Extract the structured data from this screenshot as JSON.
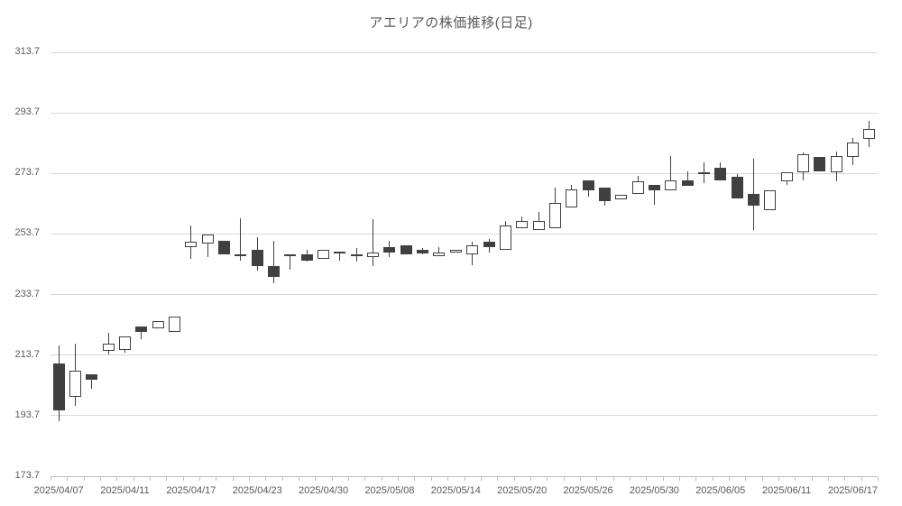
{
  "page": {
    "title": "アエリアの株価推移(日足)"
  },
  "chart_data": {
    "type": "candlestick",
    "title": "アエリアの株価推移(日足)",
    "grid": "horizontal",
    "legend": "none",
    "colors": {
      "up_fill": "#ffffff",
      "down_fill": "#404040",
      "outline": "#404040",
      "gridline": "#d9d9d9",
      "axis": "#bfbfbf",
      "text": "#595959",
      "background": "#ffffff"
    },
    "y_axis": {
      "min": 173.7,
      "max": 313.7,
      "step": 20,
      "tick_labels": [
        "173.7",
        "193.7",
        "213.7",
        "233.7",
        "253.7",
        "273.7",
        "293.7",
        "313.7"
      ]
    },
    "x_axis": {
      "label_every": 4,
      "tick_labels": [
        "2025/04/07",
        "2025/04/11",
        "2025/04/17",
        "2025/04/23",
        "2025/04/30",
        "2025/05/08",
        "2025/05/14",
        "2025/05/20",
        "2025/05/26",
        "2025/05/30",
        "2025/06/05",
        "2025/06/11",
        "2025/06/17"
      ]
    },
    "candles": [
      {
        "date": "2025/04/07",
        "o": 211.0,
        "h": 217.0,
        "l": 192.0,
        "c": 195.5
      },
      {
        "date": "2025/04/08",
        "o": 200.0,
        "h": 217.5,
        "l": 197.0,
        "c": 208.5
      },
      {
        "date": "2025/04/09",
        "o": 207.5,
        "h": 207.5,
        "l": 202.5,
        "c": 205.5
      },
      {
        "date": "2025/04/10",
        "o": 215.0,
        "h": 221.0,
        "l": 214.0,
        "c": 217.5
      },
      {
        "date": "2025/04/11",
        "o": 215.5,
        "h": 220.0,
        "l": 214.5,
        "c": 220.0
      },
      {
        "date": "2025/04/14",
        "o": 223.0,
        "h": 223.0,
        "l": 219.0,
        "c": 221.5
      },
      {
        "date": "2025/04/15",
        "o": 222.5,
        "h": 225.0,
        "l": 222.5,
        "c": 225.0
      },
      {
        "date": "2025/04/16",
        "o": 221.5,
        "h": 226.5,
        "l": 221.5,
        "c": 226.5
      },
      {
        "date": "2025/04/17",
        "o": 249.5,
        "h": 256.5,
        "l": 245.5,
        "c": 251.0
      },
      {
        "date": "2025/04/18",
        "o": 250.5,
        "h": 253.5,
        "l": 246.0,
        "c": 253.5
      },
      {
        "date": "2025/04/21",
        "o": 251.5,
        "h": 251.5,
        "l": 247.0,
        "c": 247.0
      },
      {
        "date": "2025/04/22",
        "o": 247.0,
        "h": 259.0,
        "l": 245.0,
        "c": 246.3
      },
      {
        "date": "2025/04/23",
        "o": 248.5,
        "h": 252.5,
        "l": 241.5,
        "c": 243.0
      },
      {
        "date": "2025/04/24",
        "o": 243.0,
        "h": 251.5,
        "l": 237.5,
        "c": 239.5
      },
      {
        "date": "2025/04/25",
        "o": 247.0,
        "h": 247.0,
        "l": 242.0,
        "c": 246.5
      },
      {
        "date": "2025/04/28",
        "o": 247.0,
        "h": 248.5,
        "l": 244.5,
        "c": 245.0
      },
      {
        "date": "2025/04/30",
        "o": 245.5,
        "h": 248.5,
        "l": 245.5,
        "c": 248.5
      },
      {
        "date": "2025/05/01",
        "o": 248.0,
        "h": 248.0,
        "l": 245.0,
        "c": 247.5
      },
      {
        "date": "2025/05/02",
        "o": 247.0,
        "h": 249.0,
        "l": 244.5,
        "c": 246.5
      },
      {
        "date": "2025/05/07",
        "o": 246.0,
        "h": 258.5,
        "l": 243.0,
        "c": 247.5
      },
      {
        "date": "2025/05/08",
        "o": 249.5,
        "h": 251.5,
        "l": 246.0,
        "c": 247.5
      },
      {
        "date": "2025/05/09",
        "o": 250.0,
        "h": 250.0,
        "l": 247.0,
        "c": 247.0
      },
      {
        "date": "2025/05/12",
        "o": 248.5,
        "h": 249.0,
        "l": 247.0,
        "c": 247.3
      },
      {
        "date": "2025/05/13",
        "o": 246.5,
        "h": 249.5,
        "l": 246.5,
        "c": 247.5
      },
      {
        "date": "2025/05/14",
        "o": 247.5,
        "h": 248.5,
        "l": 247.5,
        "c": 248.5
      },
      {
        "date": "2025/05/15",
        "o": 247.0,
        "h": 251.0,
        "l": 243.5,
        "c": 250.0
      },
      {
        "date": "2025/05/16",
        "o": 251.0,
        "h": 252.0,
        "l": 247.5,
        "c": 249.5
      },
      {
        "date": "2025/05/19",
        "o": 248.5,
        "h": 258.0,
        "l": 248.5,
        "c": 256.5
      },
      {
        "date": "2025/05/20",
        "o": 255.5,
        "h": 259.5,
        "l": 255.5,
        "c": 258.0
      },
      {
        "date": "2025/05/21",
        "o": 255.0,
        "h": 261.0,
        "l": 255.0,
        "c": 258.0
      },
      {
        "date": "2025/05/22",
        "o": 255.5,
        "h": 269.0,
        "l": 255.5,
        "c": 264.0
      },
      {
        "date": "2025/05/23",
        "o": 262.5,
        "h": 270.0,
        "l": 262.5,
        "c": 268.5
      },
      {
        "date": "2025/05/26",
        "o": 271.5,
        "h": 271.5,
        "l": 266.0,
        "c": 268.0
      },
      {
        "date": "2025/05/27",
        "o": 269.0,
        "h": 269.0,
        "l": 263.0,
        "c": 264.5
      },
      {
        "date": "2025/05/28",
        "o": 265.0,
        "h": 266.5,
        "l": 265.0,
        "c": 266.5
      },
      {
        "date": "2025/05/29",
        "o": 267.0,
        "h": 273.0,
        "l": 267.0,
        "c": 271.0
      },
      {
        "date": "2025/05/30",
        "o": 270.0,
        "h": 270.0,
        "l": 263.5,
        "c": 268.0
      },
      {
        "date": "2025/06/02",
        "o": 268.0,
        "h": 279.5,
        "l": 268.0,
        "c": 271.5
      },
      {
        "date": "2025/06/03",
        "o": 271.5,
        "h": 274.5,
        "l": 269.5,
        "c": 269.5
      },
      {
        "date": "2025/06/04",
        "o": 273.5,
        "h": 277.5,
        "l": 270.5,
        "c": 274.0
      },
      {
        "date": "2025/06/05",
        "o": 275.5,
        "h": 277.5,
        "l": 271.5,
        "c": 271.5
      },
      {
        "date": "2025/06/06",
        "o": 272.5,
        "h": 273.5,
        "l": 265.5,
        "c": 265.5
      },
      {
        "date": "2025/06/09",
        "o": 267.0,
        "h": 278.5,
        "l": 255.0,
        "c": 263.0
      },
      {
        "date": "2025/06/10",
        "o": 261.5,
        "h": 268.0,
        "l": 261.5,
        "c": 268.0
      },
      {
        "date": "2025/06/11",
        "o": 271.0,
        "h": 274.0,
        "l": 270.0,
        "c": 274.0
      },
      {
        "date": "2025/06/12",
        "o": 274.0,
        "h": 280.5,
        "l": 271.5,
        "c": 280.0
      },
      {
        "date": "2025/06/13",
        "o": 279.0,
        "h": 279.0,
        "l": 274.5,
        "c": 274.5
      },
      {
        "date": "2025/06/16",
        "o": 274.0,
        "h": 281.0,
        "l": 271.0,
        "c": 279.5
      },
      {
        "date": "2025/06/17",
        "o": 279.0,
        "h": 285.5,
        "l": 276.5,
        "c": 284.0
      },
      {
        "date": "2025/06/18",
        "o": 285.0,
        "h": 291.0,
        "l": 282.5,
        "c": 288.5
      }
    ]
  }
}
